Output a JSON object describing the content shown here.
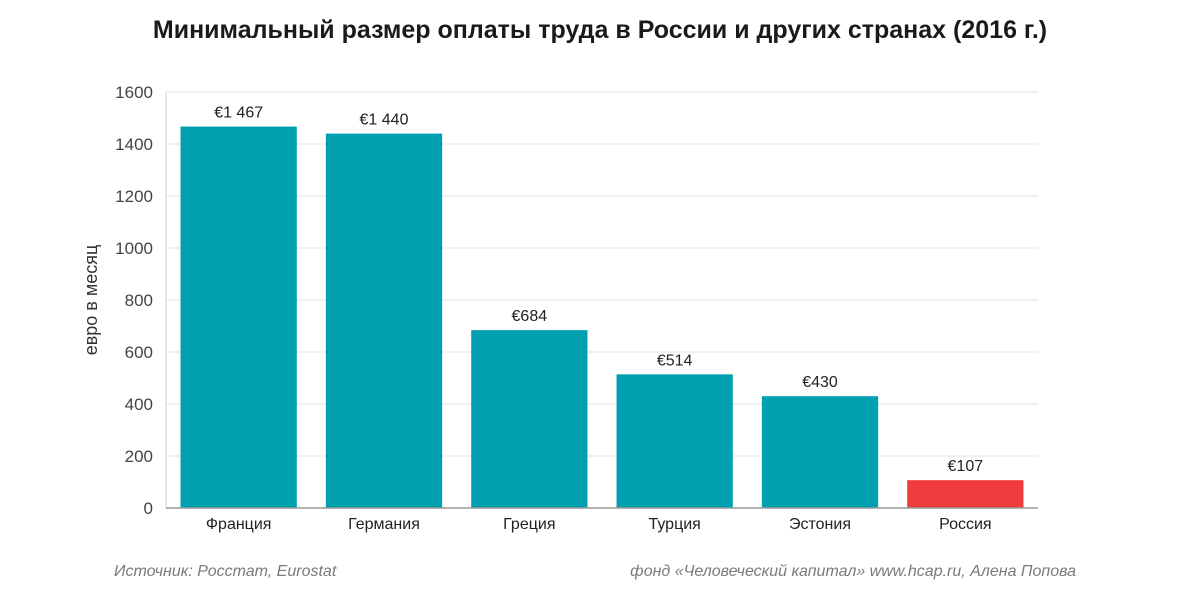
{
  "chart_data": {
    "type": "bar",
    "title": "Минимальный размер оплаты труда в России и других странах (2016 г.)",
    "ylabel": "евро в месяц",
    "xlabel": "",
    "ylim": [
      0,
      1600
    ],
    "yticks": [
      "0",
      "200",
      "400",
      "600",
      "800",
      "1000",
      "1200",
      "1400",
      "1600"
    ],
    "grid": true,
    "categories": [
      "Франция",
      "Германия",
      "Греция",
      "Турция",
      "Эстония",
      "Россия"
    ],
    "values": [
      1467,
      1440,
      684,
      514,
      430,
      107
    ],
    "data_labels": [
      "€1 467",
      "€1 440",
      "€684",
      "€514",
      "€430",
      "€107"
    ],
    "bar_colors": [
      "#00a0b0",
      "#00a0b0",
      "#00a0b0",
      "#00a0b0",
      "#00a0b0",
      "#f03c3c"
    ]
  },
  "footer": {
    "source": "Источник: Росстат, Eurostat",
    "credit": "фонд «Человеческий капитал» www.hcap.ru, Алена Попова"
  }
}
